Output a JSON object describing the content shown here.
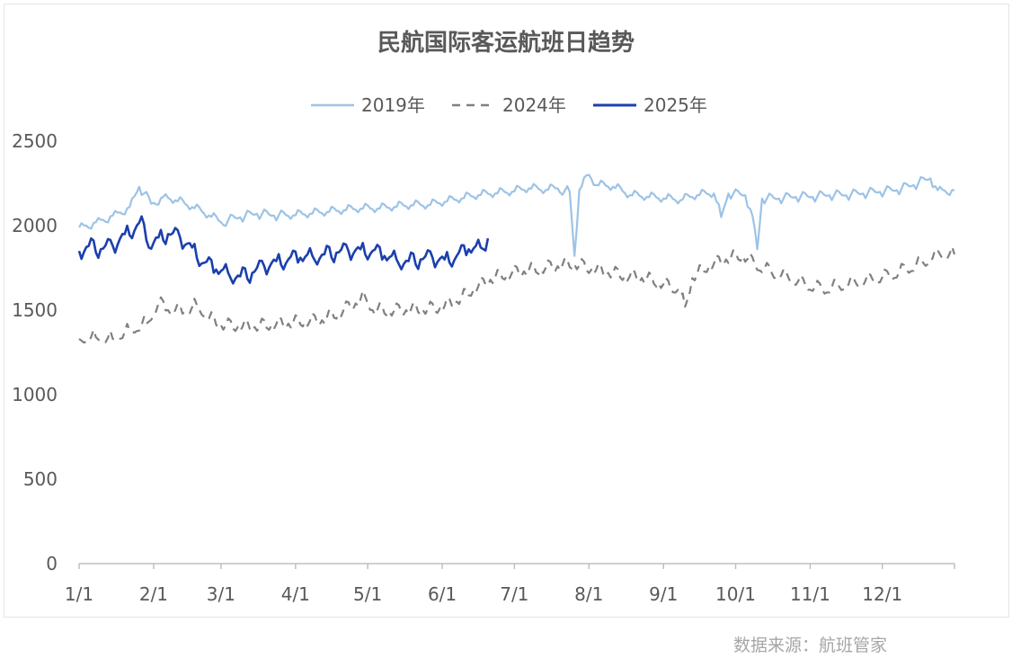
{
  "chart_data": {
    "type": "line",
    "title": "民航国际客运航班日趋势",
    "xlabel": "",
    "ylabel": "",
    "ylim": [
      0,
      2500
    ],
    "yticks": [
      0,
      500,
      1000,
      1500,
      2000,
      2500
    ],
    "x_tick_labels": [
      "1/1",
      "2/1",
      "3/1",
      "4/1",
      "5/1",
      "6/1",
      "7/1",
      "8/1",
      "9/1",
      "10/1",
      "11/1",
      "12/1"
    ],
    "legend_position": "top-center",
    "grid": false,
    "series": [
      {
        "name": "2019年",
        "color": "#9dc3e6",
        "style": "solid",
        "points": [
          [
            1,
            1990
          ],
          [
            8,
            2020
          ],
          [
            15,
            2060
          ],
          [
            22,
            2110
          ],
          [
            26,
            2230
          ],
          [
            31,
            2130
          ],
          [
            36,
            2170
          ],
          [
            41,
            2150
          ],
          [
            48,
            2110
          ],
          [
            55,
            2060
          ],
          [
            60,
            2020
          ],
          [
            68,
            2050
          ],
          [
            75,
            2070
          ],
          [
            82,
            2060
          ],
          [
            90,
            2060
          ],
          [
            97,
            2070
          ],
          [
            104,
            2080
          ],
          [
            111,
            2090
          ],
          [
            118,
            2100
          ],
          [
            125,
            2100
          ],
          [
            132,
            2110
          ],
          [
            139,
            2120
          ],
          [
            146,
            2120
          ],
          [
            153,
            2140
          ],
          [
            160,
            2160
          ],
          [
            167,
            2180
          ],
          [
            174,
            2190
          ],
          [
            181,
            2200
          ],
          [
            188,
            2220
          ],
          [
            195,
            2210
          ],
          [
            200,
            2220
          ],
          [
            205,
            2200
          ],
          [
            207,
            1820
          ],
          [
            209,
            2210
          ],
          [
            213,
            2300
          ],
          [
            216,
            2240
          ],
          [
            223,
            2230
          ],
          [
            230,
            2180
          ],
          [
            237,
            2170
          ],
          [
            244,
            2160
          ],
          [
            251,
            2150
          ],
          [
            258,
            2180
          ],
          [
            265,
            2190
          ],
          [
            268,
            2050
          ],
          [
            271,
            2190
          ],
          [
            278,
            2180
          ],
          [
            281,
            2060
          ],
          [
            283,
            1860
          ],
          [
            285,
            2160
          ],
          [
            292,
            2160
          ],
          [
            299,
            2170
          ],
          [
            306,
            2170
          ],
          [
            313,
            2180
          ],
          [
            320,
            2180
          ],
          [
            327,
            2190
          ],
          [
            334,
            2200
          ],
          [
            341,
            2210
          ],
          [
            348,
            2240
          ],
          [
            355,
            2280
          ],
          [
            358,
            2210
          ],
          [
            365,
            2210
          ]
        ]
      },
      {
        "name": "2024年",
        "color": "#808080",
        "style": "dashed",
        "points": [
          [
            1,
            1330
          ],
          [
            8,
            1340
          ],
          [
            15,
            1330
          ],
          [
            22,
            1380
          ],
          [
            29,
            1420
          ],
          [
            34,
            1540
          ],
          [
            38,
            1500
          ],
          [
            45,
            1490
          ],
          [
            50,
            1530
          ],
          [
            55,
            1450
          ],
          [
            60,
            1410
          ],
          [
            67,
            1400
          ],
          [
            74,
            1400
          ],
          [
            81,
            1410
          ],
          [
            88,
            1420
          ],
          [
            95,
            1430
          ],
          [
            102,
            1440
          ],
          [
            109,
            1480
          ],
          [
            116,
            1540
          ],
          [
            120,
            1580
          ],
          [
            123,
            1500
          ],
          [
            130,
            1490
          ],
          [
            137,
            1500
          ],
          [
            144,
            1500
          ],
          [
            151,
            1510
          ],
          [
            158,
            1550
          ],
          [
            165,
            1620
          ],
          [
            172,
            1680
          ],
          [
            179,
            1710
          ],
          [
            186,
            1730
          ],
          [
            193,
            1740
          ],
          [
            200,
            1760
          ],
          [
            207,
            1770
          ],
          [
            214,
            1740
          ],
          [
            221,
            1720
          ],
          [
            228,
            1700
          ],
          [
            235,
            1690
          ],
          [
            242,
            1660
          ],
          [
            250,
            1620
          ],
          [
            253,
            1520
          ],
          [
            256,
            1690
          ],
          [
            263,
            1760
          ],
          [
            270,
            1800
          ],
          [
            277,
            1820
          ],
          [
            282,
            1770
          ],
          [
            289,
            1720
          ],
          [
            296,
            1690
          ],
          [
            303,
            1650
          ],
          [
            310,
            1620
          ],
          [
            317,
            1640
          ],
          [
            324,
            1660
          ],
          [
            331,
            1680
          ],
          [
            338,
            1700
          ],
          [
            345,
            1740
          ],
          [
            352,
            1780
          ],
          [
            359,
            1830
          ],
          [
            365,
            1830
          ]
        ]
      },
      {
        "name": "2025年",
        "color": "#1b3fae",
        "style": "solid",
        "points": [
          [
            1,
            1850
          ],
          [
            5,
            1880
          ],
          [
            10,
            1860
          ],
          [
            15,
            1880
          ],
          [
            20,
            1950
          ],
          [
            25,
            2000
          ],
          [
            28,
            2010
          ],
          [
            30,
            1870
          ],
          [
            34,
            1930
          ],
          [
            38,
            1950
          ],
          [
            43,
            1930
          ],
          [
            48,
            1870
          ],
          [
            53,
            1780
          ],
          [
            58,
            1740
          ],
          [
            63,
            1720
          ],
          [
            68,
            1700
          ],
          [
            73,
            1720
          ],
          [
            78,
            1760
          ],
          [
            83,
            1790
          ],
          [
            88,
            1800
          ],
          [
            93,
            1810
          ],
          [
            98,
            1820
          ],
          [
            103,
            1830
          ],
          [
            108,
            1840
          ],
          [
            113,
            1850
          ],
          [
            118,
            1860
          ],
          [
            123,
            1850
          ],
          [
            128,
            1820
          ],
          [
            133,
            1800
          ],
          [
            138,
            1790
          ],
          [
            143,
            1800
          ],
          [
            148,
            1810
          ],
          [
            153,
            1800
          ],
          [
            158,
            1820
          ],
          [
            163,
            1860
          ],
          [
            168,
            1870
          ],
          [
            171,
            1925
          ]
        ]
      }
    ]
  },
  "source_note": "数据来源：航班管家"
}
